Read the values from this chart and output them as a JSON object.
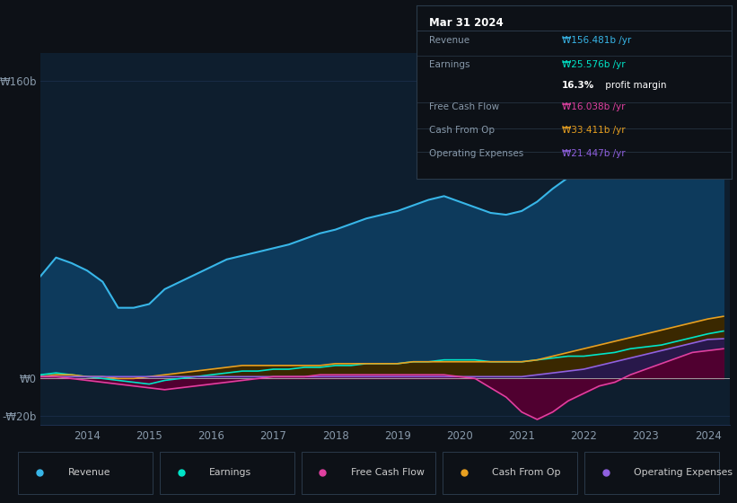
{
  "background_color": "#0d1117",
  "plot_bg_color": "#0e1e2e",
  "grid_color": "#1e3050",
  "text_color": "#8899aa",
  "title_color": "#ffffff",
  "years": [
    2013.25,
    2013.5,
    2013.75,
    2014.0,
    2014.25,
    2014.5,
    2014.75,
    2015.0,
    2015.25,
    2015.5,
    2015.75,
    2016.0,
    2016.25,
    2016.5,
    2016.75,
    2017.0,
    2017.25,
    2017.5,
    2017.75,
    2018.0,
    2018.25,
    2018.5,
    2018.75,
    2019.0,
    2019.25,
    2019.5,
    2019.75,
    2020.0,
    2020.25,
    2020.5,
    2020.75,
    2021.0,
    2021.25,
    2021.5,
    2021.75,
    2022.0,
    2022.25,
    2022.5,
    2022.75,
    2023.0,
    2023.25,
    2023.5,
    2023.75,
    2024.0,
    2024.25
  ],
  "revenue": [
    55,
    65,
    62,
    58,
    52,
    38,
    38,
    40,
    48,
    52,
    56,
    60,
    64,
    66,
    68,
    70,
    72,
    75,
    78,
    80,
    83,
    86,
    88,
    90,
    93,
    96,
    98,
    95,
    92,
    89,
    88,
    90,
    95,
    102,
    108,
    108,
    112,
    120,
    130,
    130,
    132,
    138,
    148,
    155,
    156
  ],
  "earnings": [
    2,
    3,
    2,
    1,
    0,
    -1,
    -2,
    -3,
    -1,
    0,
    1,
    2,
    3,
    4,
    4,
    5,
    5,
    6,
    6,
    7,
    7,
    8,
    8,
    8,
    9,
    9,
    10,
    10,
    10,
    9,
    9,
    9,
    10,
    11,
    12,
    12,
    13,
    14,
    16,
    17,
    18,
    20,
    22,
    24,
    25.5
  ],
  "free_cash_flow": [
    1,
    1,
    0,
    -1,
    -2,
    -3,
    -4,
    -5,
    -6,
    -5,
    -4,
    -3,
    -2,
    -1,
    0,
    1,
    1,
    1,
    2,
    2,
    2,
    2,
    2,
    2,
    2,
    2,
    2,
    1,
    0,
    -5,
    -10,
    -18,
    -22,
    -18,
    -12,
    -8,
    -4,
    -2,
    2,
    5,
    8,
    11,
    14,
    15,
    16
  ],
  "cash_from_op": [
    1,
    2,
    2,
    1,
    1,
    0,
    0,
    1,
    2,
    3,
    4,
    5,
    6,
    7,
    7,
    7,
    7,
    7,
    7,
    8,
    8,
    8,
    8,
    8,
    9,
    9,
    9,
    9,
    9,
    9,
    9,
    9,
    10,
    12,
    14,
    16,
    18,
    20,
    22,
    24,
    26,
    28,
    30,
    32,
    33.4
  ],
  "operating_expenses": [
    1,
    1,
    1,
    1,
    1,
    1,
    1,
    1,
    1,
    1,
    1,
    1,
    1,
    1,
    1,
    1,
    1,
    1,
    1,
    1,
    1,
    1,
    1,
    1,
    1,
    1,
    1,
    1,
    1,
    1,
    1,
    1,
    2,
    3,
    4,
    5,
    7,
    9,
    11,
    13,
    15,
    17,
    19,
    21,
    21.4
  ],
  "revenue_color": "#38b6e8",
  "revenue_fill": "#0d3a5c",
  "earnings_color": "#00e5c8",
  "earnings_fill": "#004d44",
  "free_cash_flow_color": "#e040a0",
  "free_cash_flow_fill": "#500030",
  "cash_from_op_color": "#e8a020",
  "cash_from_op_fill": "#3a2800",
  "operating_expenses_color": "#9060e0",
  "operating_expenses_fill": "#28184a",
  "ylim_min": -25,
  "ylim_max": 175,
  "yticks": [
    -20,
    0,
    160
  ],
  "ytick_labels": [
    "-₩20b",
    "₩0",
    "₩160b"
  ],
  "xtick_years": [
    2014,
    2015,
    2016,
    2017,
    2018,
    2019,
    2020,
    2021,
    2022,
    2023,
    2024
  ],
  "info_box": {
    "title": "Mar 31 2024",
    "rows": [
      {
        "label": "Revenue",
        "value": "₩156.481b /yr",
        "value_color": "#38b6e8"
      },
      {
        "label": "Earnings",
        "value": "₩25.576b /yr",
        "value_color": "#00e5c8"
      },
      {
        "label": "",
        "value": "16.3% profit margin",
        "value_color": "#ffffff",
        "bold_part": "16.3%"
      },
      {
        "label": "Free Cash Flow",
        "value": "₩16.038b /yr",
        "value_color": "#e040a0"
      },
      {
        "label": "Cash From Op",
        "value": "₩33.411b /yr",
        "value_color": "#e8a020"
      },
      {
        "label": "Operating Expenses",
        "value": "₩21.447b /yr",
        "value_color": "#9060e0"
      }
    ]
  },
  "legend_items": [
    {
      "label": "Revenue",
      "color": "#38b6e8"
    },
    {
      "label": "Earnings",
      "color": "#00e5c8"
    },
    {
      "label": "Free Cash Flow",
      "color": "#e040a0"
    },
    {
      "label": "Cash From Op",
      "color": "#e8a020"
    },
    {
      "label": "Operating Expenses",
      "color": "#9060e0"
    }
  ]
}
